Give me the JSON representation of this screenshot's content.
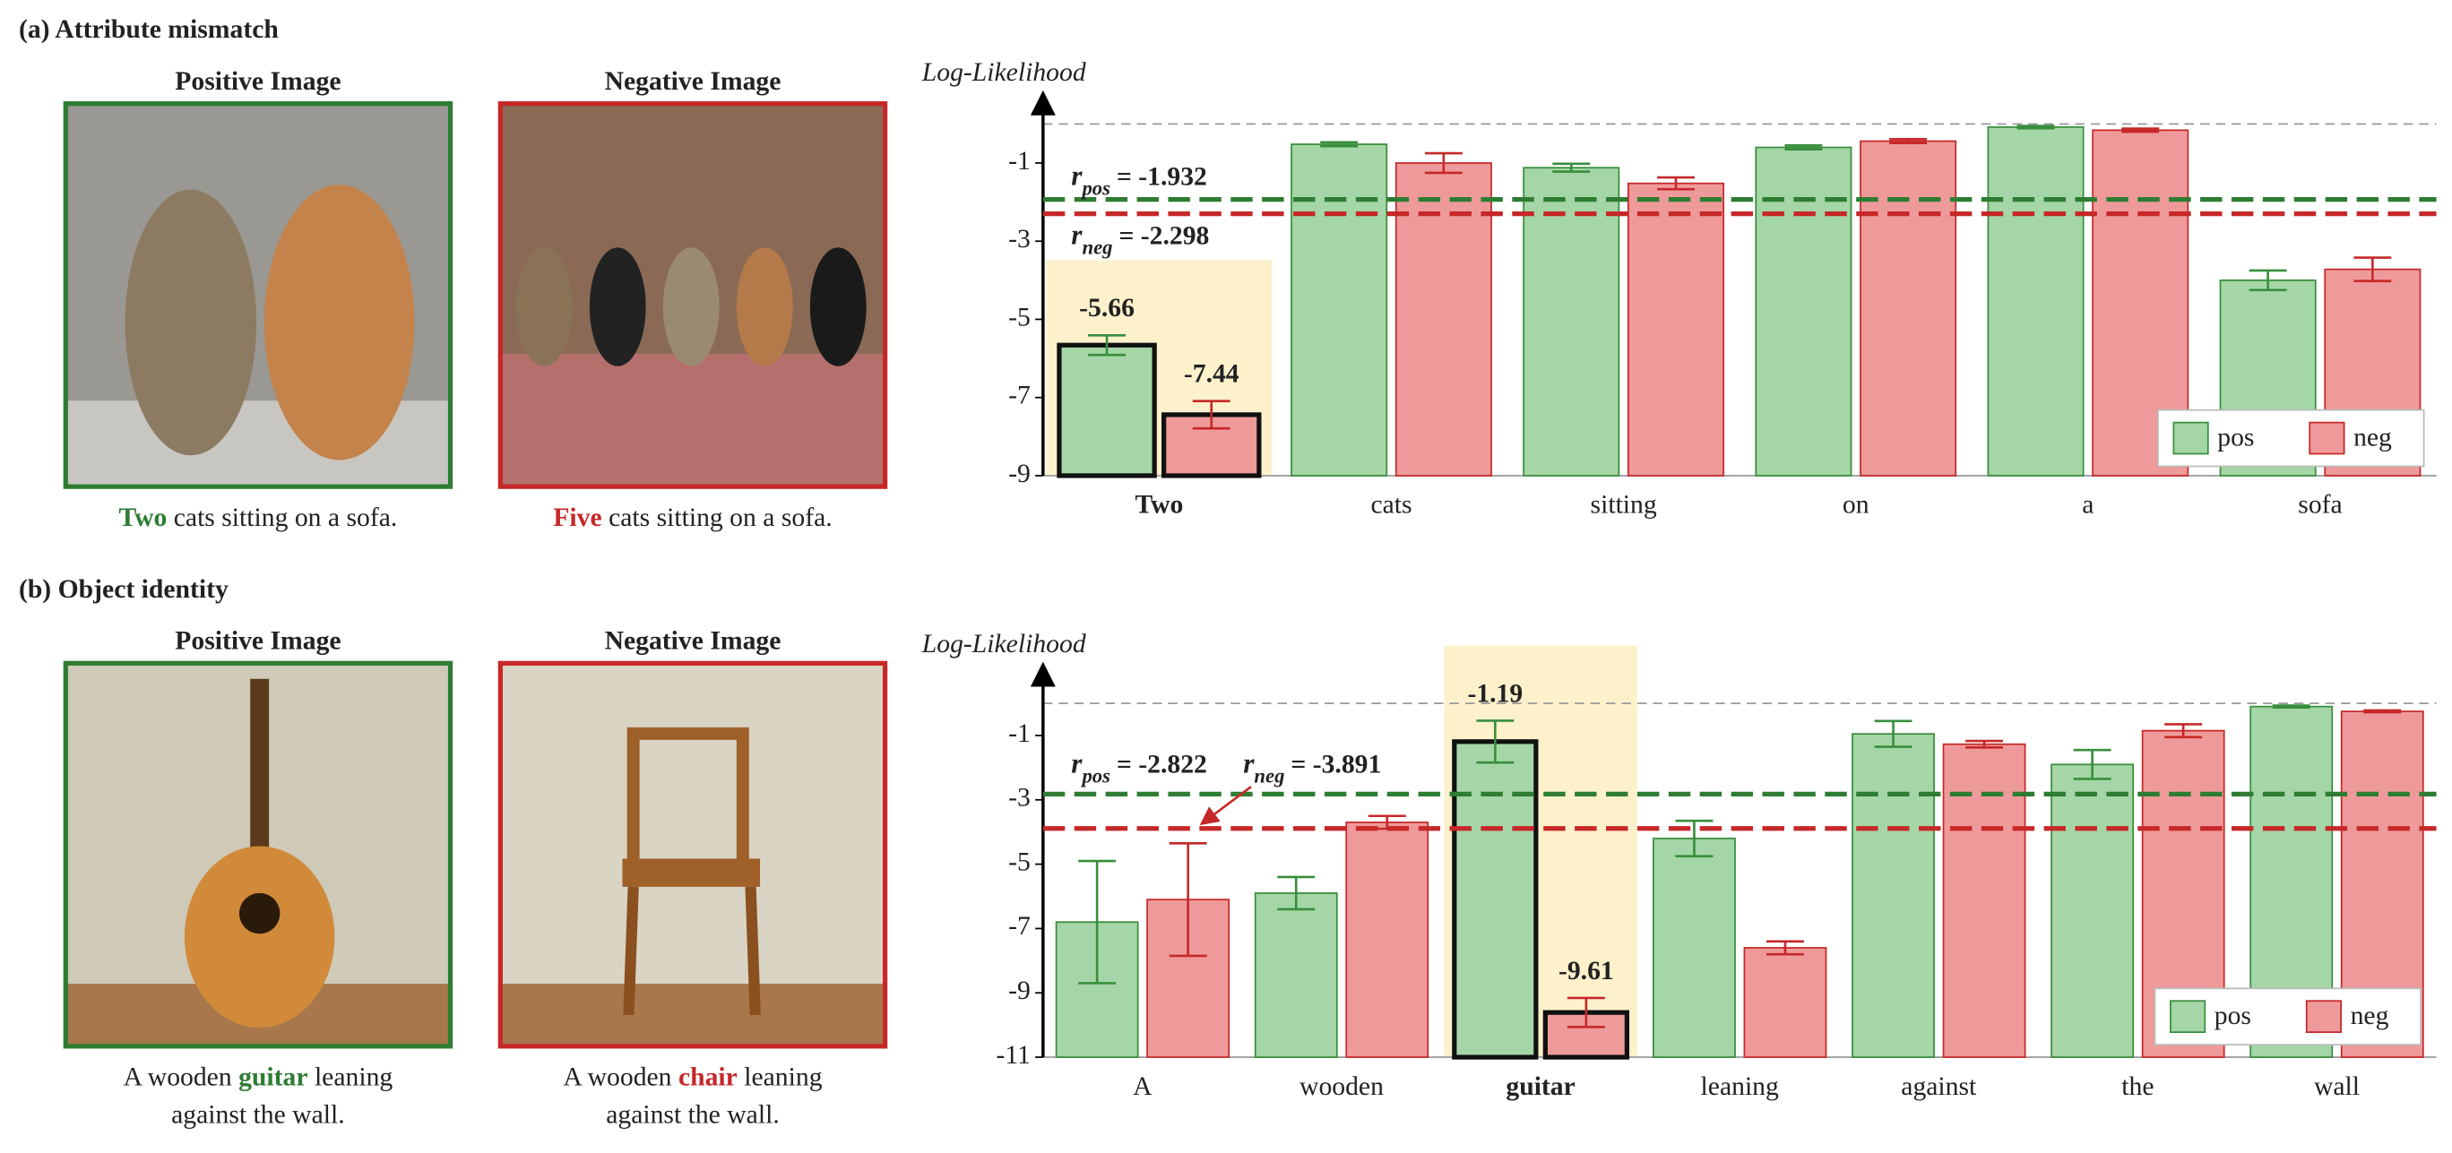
{
  "panels": [
    {
      "label": "(a) Attribute mismatch",
      "positive": {
        "title": "Positive Image",
        "caption": [
          [
            {
              "text": "Two",
              "color": "#2e7d32"
            },
            {
              "text": " cats sitting on a sofa."
            }
          ]
        ]
      },
      "negative": {
        "title": "Negative Image",
        "caption": [
          [
            {
              "text": "Five",
              "color": "#c62828"
            },
            {
              "text": " cats sitting on a sofa."
            }
          ]
        ]
      }
    },
    {
      "label": "(b) Object identity",
      "positive": {
        "title": "Positive Image",
        "caption": [
          [
            {
              "text": "A wooden "
            },
            {
              "text": "guitar",
              "color": "#2e7d32"
            },
            {
              "text": " leaning"
            }
          ],
          [
            {
              "text": "against the wall."
            }
          ]
        ]
      },
      "negative": {
        "title": "Negative Image",
        "caption": [
          [
            {
              "text": "A wooden "
            },
            {
              "text": "chair",
              "color": "#c62828"
            },
            {
              "text": " leaning"
            }
          ],
          [
            {
              "text": "against the wall."
            }
          ]
        ]
      }
    }
  ],
  "chart_data": [
    {
      "type": "bar",
      "y_label": "Log-Likelihood",
      "categories": [
        "Two",
        "cats",
        "sitting",
        "on",
        "a",
        "sofa"
      ],
      "series": [
        {
          "name": "pos",
          "color": "#a5d6a7",
          "edge": "#388e3c",
          "label_color": "#2e7d32",
          "values": [
            -5.66,
            -0.52,
            -1.12,
            -0.6,
            -0.08,
            -4.0
          ],
          "errors": [
            0.25,
            0.05,
            0.1,
            0.05,
            0.03,
            0.25
          ]
        },
        {
          "name": "neg",
          "color": "#ef9a9a",
          "edge": "#c62828",
          "label_color": "#c62828",
          "values": [
            -7.44,
            -1.0,
            -1.52,
            -0.44,
            -0.16,
            -3.72
          ],
          "errors": [
            0.35,
            0.25,
            0.15,
            0.05,
            0.04,
            0.3
          ]
        }
      ],
      "ylim": [
        -9,
        0.7
      ],
      "yticks": [
        -1,
        -3,
        -5,
        -7,
        -9
      ],
      "hline": 0,
      "ref_lines": [
        {
          "symbol": "r",
          "subscript": "pos",
          "label": "= -1.932",
          "value": -1.932,
          "color": "#2e7d32"
        },
        {
          "symbol": "r",
          "subscript": "neg",
          "label": "= -2.298",
          "value": -2.298,
          "color": "#c62828"
        }
      ],
      "highlight": 0,
      "legend": "lower right"
    },
    {
      "type": "bar",
      "y_label": "Log-Likelihood",
      "categories": [
        "A",
        "wooden",
        "guitar",
        "leaning",
        "against",
        "the",
        "wall"
      ],
      "series": [
        {
          "name": "pos",
          "color": "#a5d6a7",
          "edge": "#388e3c",
          "label_color": "#2e7d32",
          "values": [
            -6.8,
            -5.9,
            -1.19,
            -4.2,
            -0.95,
            -1.9,
            -0.1
          ],
          "errors": [
            1.9,
            0.5,
            0.65,
            0.55,
            0.4,
            0.45,
            0.03
          ]
        },
        {
          "name": "neg",
          "color": "#ef9a9a",
          "edge": "#c62828",
          "label_color": "#c62828",
          "values": [
            -6.1,
            -3.7,
            -9.61,
            -7.6,
            -1.27,
            -0.85,
            -0.25
          ],
          "errors": [
            1.75,
            0.2,
            0.45,
            0.2,
            0.1,
            0.2,
            0.03
          ]
        }
      ],
      "ylim": [
        -11,
        1.1
      ],
      "yticks": [
        -1,
        -3,
        -5,
        -7,
        -9,
        -11
      ],
      "hline": 0,
      "ref_lines": [
        {
          "symbol": "r",
          "subscript": "pos",
          "label": "= -2.822",
          "value": -2.822,
          "color": "#2e7d32"
        },
        {
          "symbol": "r",
          "subscript": "neg",
          "label": "= -3.891",
          "value": -3.891,
          "color": "#c62828"
        }
      ],
      "highlight": 2,
      "legend": "lower right"
    }
  ]
}
